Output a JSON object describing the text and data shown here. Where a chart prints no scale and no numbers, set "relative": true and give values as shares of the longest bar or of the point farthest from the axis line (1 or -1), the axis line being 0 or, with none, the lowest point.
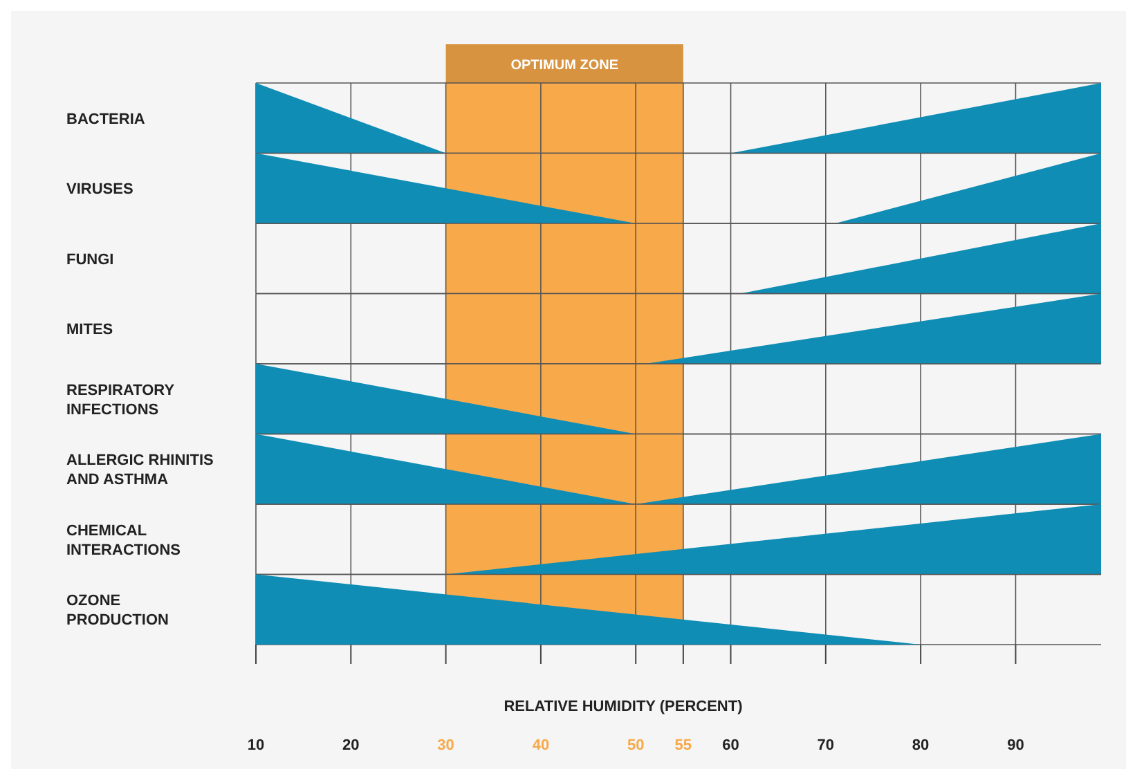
{
  "chart_data": [
    {
      "type": "area",
      "ylabel": "BACTERIA",
      "relative": true,
      "x": [
        10,
        30,
        60,
        99
      ],
      "series": [
        {
          "color": "#0f8db5",
          "values": [
            1,
            0,
            0,
            1
          ]
        }
      ],
      "xlim": [
        10,
        99
      ],
      "xticks": [
        10,
        20,
        30,
        40,
        50,
        55,
        60,
        70,
        80,
        90
      ],
      "grid": "x",
      "tick_labels": false,
      "bands": [
        {
          "axis": "x",
          "from": 30,
          "to": 55,
          "label": "OPTIMUM ZONE",
          "color": "#f8a94a"
        }
      ]
    },
    {
      "type": "area",
      "ylabel": "VIRUSES",
      "relative": true,
      "x": [
        10,
        50,
        71,
        99
      ],
      "series": [
        {
          "color": "#0f8db5",
          "values": [
            1,
            0,
            0,
            1
          ]
        }
      ],
      "xlim": [
        10,
        99
      ],
      "xticks": [
        10,
        20,
        30,
        40,
        50,
        55,
        60,
        70,
        80,
        90
      ],
      "grid": "x",
      "tick_labels": false,
      "bands": [
        {
          "axis": "x",
          "from": 30,
          "to": 55,
          "color": "#f8a94a"
        }
      ]
    },
    {
      "type": "area",
      "ylabel": "FUNGI",
      "relative": true,
      "x": [
        61,
        99
      ],
      "series": [
        {
          "color": "#0f8db5",
          "values": [
            0,
            1
          ]
        }
      ],
      "xlim": [
        10,
        99
      ],
      "xticks": [
        10,
        20,
        30,
        40,
        50,
        55,
        60,
        70,
        80,
        90
      ],
      "grid": "x",
      "tick_labels": false,
      "bands": [
        {
          "axis": "x",
          "from": 30,
          "to": 55,
          "color": "#f8a94a"
        }
      ]
    },
    {
      "type": "area",
      "ylabel": "MITES",
      "relative": true,
      "x": [
        51,
        99
      ],
      "series": [
        {
          "color": "#0f8db5",
          "values": [
            0,
            1
          ]
        }
      ],
      "xlim": [
        10,
        99
      ],
      "xticks": [
        10,
        20,
        30,
        40,
        50,
        55,
        60,
        70,
        80,
        90
      ],
      "grid": "x",
      "tick_labels": false,
      "bands": [
        {
          "axis": "x",
          "from": 30,
          "to": 55,
          "color": "#f8a94a"
        }
      ]
    },
    {
      "type": "area",
      "ylabel": "RESPIRATORY INFECTIONS",
      "relative": true,
      "x": [
        10,
        50
      ],
      "series": [
        {
          "color": "#0f8db5",
          "values": [
            1,
            0
          ]
        }
      ],
      "xlim": [
        10,
        99
      ],
      "xticks": [
        10,
        20,
        30,
        40,
        50,
        55,
        60,
        70,
        80,
        90
      ],
      "grid": "x",
      "tick_labels": false,
      "bands": [
        {
          "axis": "x",
          "from": 30,
          "to": 55,
          "color": "#f8a94a"
        }
      ]
    },
    {
      "type": "area",
      "ylabel": "ALLERGIC RHINITIS AND ASTHMA",
      "relative": true,
      "x": [
        10,
        50,
        99
      ],
      "series": [
        {
          "color": "#0f8db5",
          "values": [
            1,
            0,
            1
          ]
        }
      ],
      "xlim": [
        10,
        99
      ],
      "xticks": [
        10,
        20,
        30,
        40,
        50,
        55,
        60,
        70,
        80,
        90
      ],
      "grid": "x",
      "tick_labels": false,
      "bands": [
        {
          "axis": "x",
          "from": 30,
          "to": 55,
          "color": "#f8a94a"
        }
      ]
    },
    {
      "type": "area",
      "ylabel": "CHEMICAL INTERACTIONS",
      "relative": true,
      "x": [
        30,
        99
      ],
      "series": [
        {
          "color": "#0f8db5",
          "values": [
            0,
            1
          ]
        }
      ],
      "xlim": [
        10,
        99
      ],
      "xticks": [
        10,
        20,
        30,
        40,
        50,
        55,
        60,
        70,
        80,
        90
      ],
      "grid": "x",
      "tick_labels": false,
      "bands": [
        {
          "axis": "x",
          "from": 30,
          "to": 55,
          "color": "#f8a94a"
        }
      ]
    },
    {
      "type": "area",
      "ylabel": "OZONE PRODUCTION",
      "xlabel": "RELATIVE HUMIDITY (PERCENT)",
      "relative": true,
      "x": [
        10,
        80
      ],
      "series": [
        {
          "color": "#0f8db5",
          "values": [
            1,
            0
          ]
        }
      ],
      "xlim": [
        10,
        99
      ],
      "xticks": [
        10,
        20,
        30,
        40,
        50,
        55,
        60,
        70,
        80,
        90
      ],
      "grid": "x",
      "tick_labels": "x",
      "bands": [
        {
          "axis": "x",
          "from": 30,
          "to": 55,
          "color": "#f8a94a"
        }
      ]
    }
  ]
}
